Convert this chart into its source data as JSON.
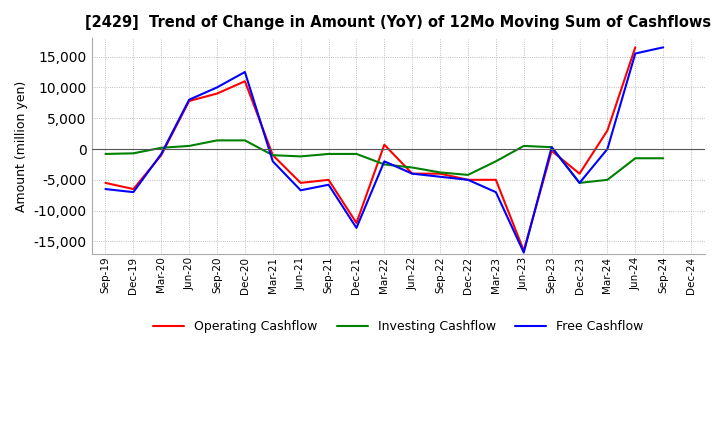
{
  "title": "[2429]  Trend of Change in Amount (YoY) of 12Mo Moving Sum of Cashflows",
  "ylabel": "Amount (million yen)",
  "ylim": [
    -17000,
    18000
  ],
  "yticks": [
    -15000,
    -10000,
    -5000,
    0,
    5000,
    10000,
    15000
  ],
  "x_labels": [
    "Sep-19",
    "Dec-19",
    "Mar-20",
    "Jun-20",
    "Sep-20",
    "Dec-20",
    "Mar-21",
    "Jun-21",
    "Sep-21",
    "Dec-21",
    "Mar-22",
    "Jun-22",
    "Sep-22",
    "Dec-22",
    "Mar-23",
    "Jun-23",
    "Sep-23",
    "Dec-23",
    "Mar-24",
    "Jun-24",
    "Sep-24",
    "Dec-24"
  ],
  "operating": [
    -5500,
    -6500,
    -1000,
    7800,
    9000,
    11000,
    -1000,
    -5500,
    -5000,
    -12000,
    700,
    -4000,
    -4000,
    -5000,
    -5000,
    -16500,
    -300,
    -4000,
    3000,
    16500,
    null,
    null
  ],
  "investing": [
    -800,
    -700,
    200,
    500,
    1400,
    1400,
    -1000,
    -1200,
    -800,
    -800,
    -2500,
    -3000,
    -3800,
    -4200,
    -2000,
    500,
    300,
    -5500,
    -5000,
    -1500,
    -1500,
    null
  ],
  "free": [
    -6500,
    -7000,
    -800,
    8000,
    10000,
    12500,
    -2000,
    -6700,
    -5800,
    -12800,
    -2000,
    -4000,
    -4500,
    -5000,
    -7000,
    -16800,
    300,
    -5500,
    0,
    15500,
    16500,
    null
  ],
  "operating_color": "#ff0000",
  "investing_color": "#008000",
  "free_color": "#0000ff",
  "background_color": "#ffffff",
  "grid_color": "#aaaaaa"
}
